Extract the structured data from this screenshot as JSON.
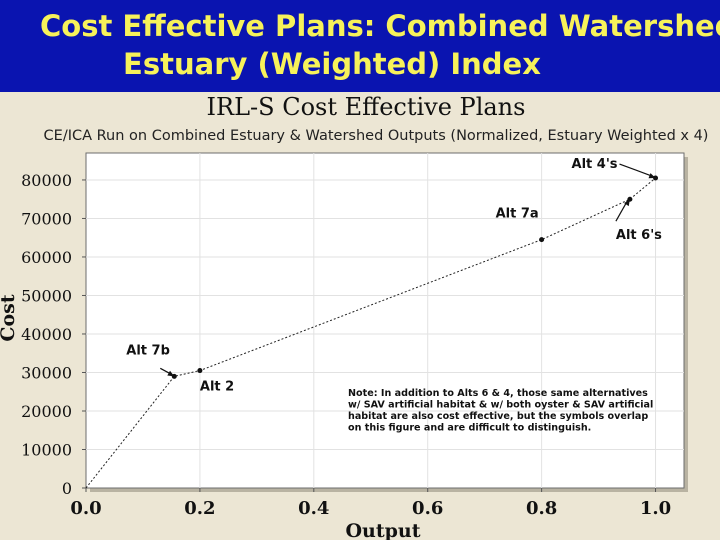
{
  "slide_title": {
    "line1": "Cost Effective Plans:  Combined Watershed",
    "line2": "Estuary (Weighted) Index"
  },
  "colors": {
    "header_bg": "#0a14b0",
    "header_text": "#f7f25a",
    "panel_bg": "#ece6d4",
    "plot_bg": "#ffffff",
    "grid": "#e2e2e2"
  },
  "chart_data": {
    "type": "line",
    "title": "IRL-S Cost Effective Plans",
    "subtitle": "CE/ICA Run on Combined Estuary & Watershed Outputs (Normalized, Estuary Weighted x 4)",
    "xlabel": "Output",
    "ylabel": "Cost",
    "xlim": [
      0,
      1.05
    ],
    "ylim": [
      0,
      87000
    ],
    "x_ticks": [
      "0.0",
      "0.2",
      "0.4",
      "0.6",
      "0.8",
      "1.0"
    ],
    "x_tick_values": [
      0,
      0.2,
      0.4,
      0.6,
      0.8,
      1.0
    ],
    "y_ticks": [
      "0",
      "10000",
      "20000",
      "30000",
      "40000",
      "50000",
      "60000",
      "70000",
      "80000"
    ],
    "y_tick_values": [
      0,
      10000,
      20000,
      30000,
      40000,
      50000,
      60000,
      70000,
      80000
    ],
    "grid": true,
    "series": [
      {
        "x": [
          0,
          0.155,
          0.2,
          0.8,
          0.955,
          1.0
        ],
        "y": [
          0,
          29000,
          30500,
          64500,
          75000,
          80500
        ]
      }
    ],
    "annotations": [
      {
        "label": "Alt 4's",
        "point_index": 5
      },
      {
        "label": "Alt 7a",
        "point_index": 3
      },
      {
        "label": "Alt 6's",
        "point_index": 4
      },
      {
        "label": "Alt 7b",
        "point_index": 1
      },
      {
        "label": "Alt 2",
        "point_index": 2
      }
    ],
    "note": [
      "Note:  In addition to Alts 6 & 4, those same alternatives",
      "w/ SAV artificial habitat & w/ both oyster & SAV artificial",
      "habitat are also cost effective, but the symbols overlap",
      "on this figure and are difficult to distinguish."
    ]
  }
}
